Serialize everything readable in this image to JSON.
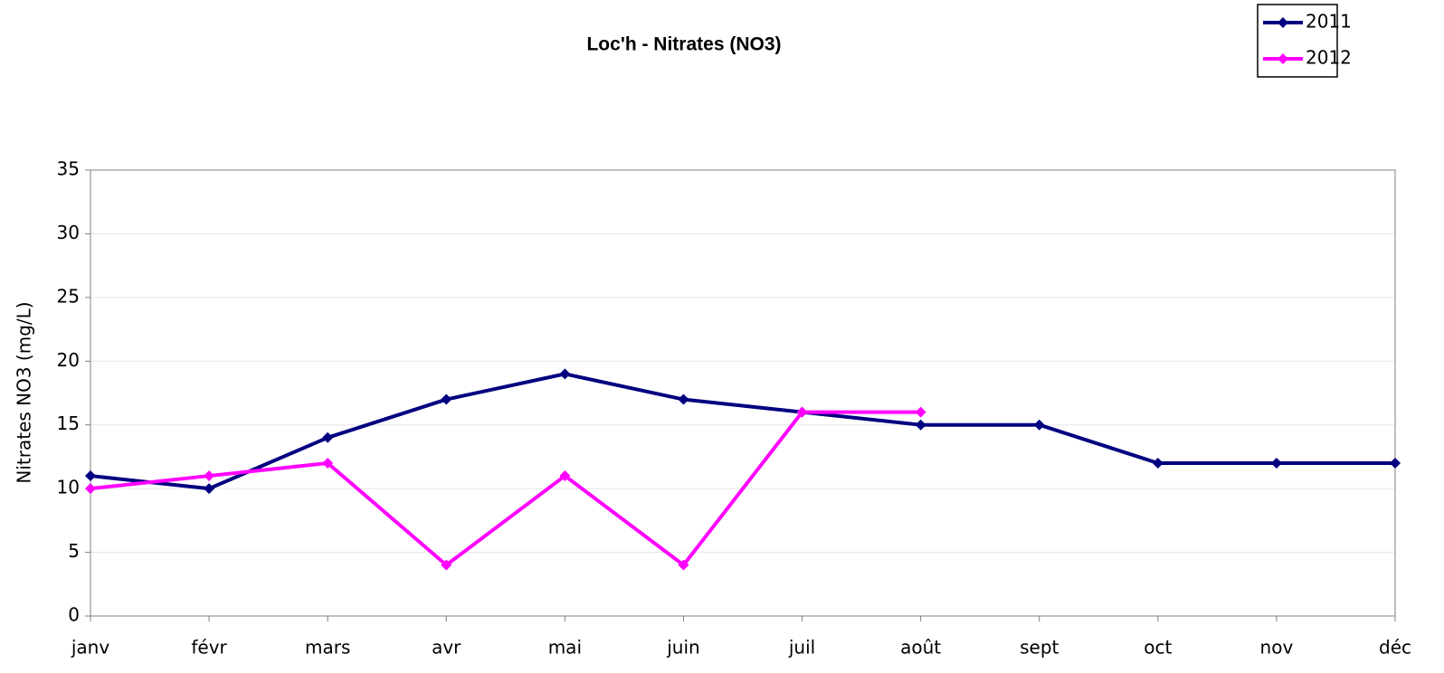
{
  "chart_data": {
    "type": "line",
    "title": "Loc'h - Nitrates (NO3)",
    "y_label": "Nitrates NO3 (mg/L)",
    "categories": [
      "janv",
      "févr",
      "mars",
      "avr",
      "mai",
      "juin",
      "juil",
      "août",
      "sept",
      "oct",
      "nov",
      "déc"
    ],
    "series": [
      {
        "name": "2011",
        "color": "#000080",
        "values": [
          11,
          10,
          14,
          17,
          19,
          17,
          16,
          15,
          15,
          12,
          12,
          12
        ]
      },
      {
        "name": "2012",
        "color": "#ff00ff",
        "values": [
          10,
          11,
          12,
          4,
          11,
          4,
          16,
          16,
          null,
          null,
          null,
          null
        ]
      }
    ],
    "ylim": [
      0,
      35
    ],
    "yticks": [
      0,
      5,
      10,
      15,
      20,
      25,
      30,
      35
    ],
    "grid": true,
    "legend": "top-right"
  }
}
